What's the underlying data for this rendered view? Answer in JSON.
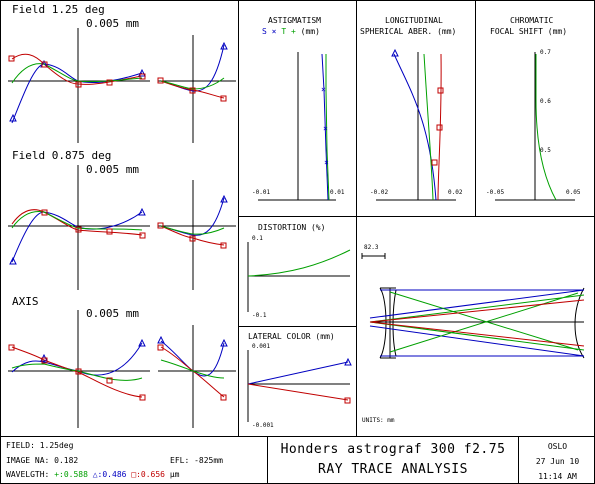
{
  "fields": [
    {
      "label": "Field 1.25 deg",
      "scale": "0.005 mm"
    },
    {
      "label": "Field 0.875 deg",
      "scale": "0.005 mm"
    },
    {
      "label": "AXIS",
      "scale": "0.005 mm"
    }
  ],
  "astig": {
    "title": "ASTIGMATISM",
    "legend_s": "S",
    "legend_x": "×",
    "legend_t": "T",
    "legend_p": "+",
    "unit": "(mm)",
    "xmin": "-0.01",
    "xmax": "0.01"
  },
  "longit": {
    "title1": "LONGITUDINAL",
    "title2": "SPHERICAL ABER. (mm)",
    "xmin": "-0.02",
    "xmax": "0.02"
  },
  "chrom": {
    "title1": "CHROMATIC",
    "title2": "FOCAL SHIFT (mm)",
    "y1": "0.7",
    "y2": "0.6",
    "y3": "0.5",
    "xmin": "-0.05",
    "xmax": "0.05"
  },
  "distortion": {
    "title": "DISTORTION (%)",
    "top": "0.1",
    "bottom": "-0.1"
  },
  "lateral": {
    "title": "LATERAL COLOR (mm)",
    "top": "0.001",
    "bottom": "-0.001"
  },
  "layout": {
    "scale": "82.3",
    "units": "UNITS: mm"
  },
  "footer": {
    "field": "FIELD: 1.25deg",
    "image_na": "IMAGE NA: 0.182",
    "efl": "EFL: -825mm",
    "wavelength_label": "WAVELGTH:",
    "w1": "+:0.588",
    "w2": "△:0.486",
    "w3": "□:0.656",
    "wunit": "µm",
    "title": "Honders astrograf 300 f2.75",
    "subtitle": "RAY TRACE ANALYSIS",
    "program": "OSLO",
    "date": "27 Jun 10",
    "time": "11:14 AM"
  },
  "colors": {
    "green": "#00a000",
    "blue": "#0000c0",
    "red": "#c00000"
  }
}
